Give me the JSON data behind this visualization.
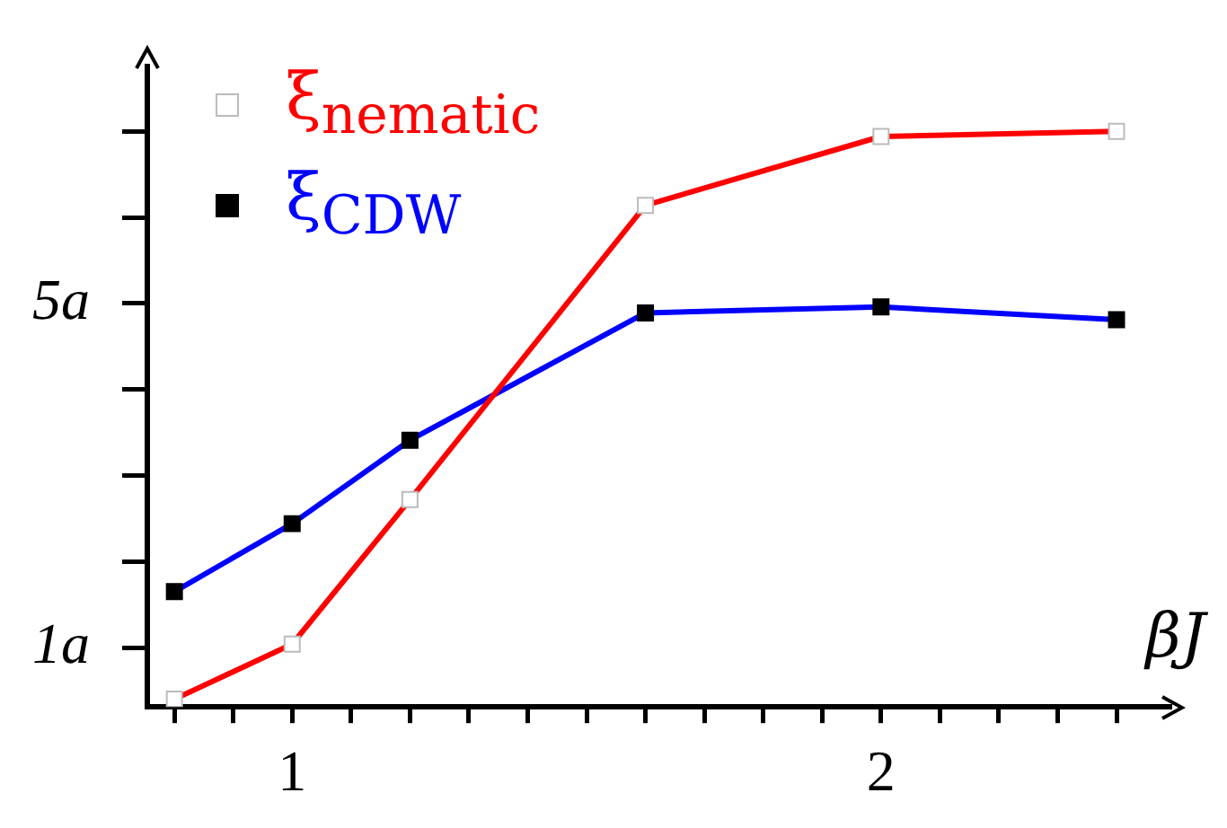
{
  "chart_data": {
    "type": "line",
    "xlabel": "βJ",
    "x": [
      0.8,
      1.0,
      1.2,
      1.6,
      2.0,
      2.4
    ],
    "series": [
      {
        "name": "ξ$_{nematic}$",
        "color": "#ff0000",
        "values": [
          0.4,
          1.04,
          2.72,
          6.14,
          6.94,
          7.0
        ]
      },
      {
        "name": "ξ$_{CDW}$",
        "color": "#0000ff",
        "values": [
          1.65,
          2.44,
          3.41,
          4.89,
          4.96,
          4.81
        ]
      }
    ],
    "xlim": [
      0.754,
      2.49
    ],
    "ylim": [
      0.31,
      7.75
    ],
    "xticks": [
      {
        "value": 0.8,
        "label": null
      },
      {
        "value": 0.9,
        "label": null
      },
      1,
      {
        "value": 1.1,
        "label": null
      },
      {
        "value": 1.2,
        "label": null
      },
      {
        "value": 1.3,
        "label": null
      },
      {
        "value": 1.4,
        "label": null
      },
      {
        "value": 1.5,
        "label": null
      },
      {
        "value": 1.6,
        "label": null
      },
      {
        "value": 1.7,
        "label": null
      },
      {
        "value": 1.8,
        "label": null
      },
      {
        "value": 1.9,
        "label": null
      },
      2,
      {
        "value": 2.1,
        "label": null
      },
      {
        "value": 2.2,
        "label": null
      },
      {
        "value": 2.3,
        "label": null
      },
      {
        "value": 2.4,
        "label": null
      }
    ],
    "yticks": [
      {
        "value": 1,
        "label": "1a"
      },
      {
        "value": 2,
        "label": null
      },
      {
        "value": 3,
        "label": null
      },
      {
        "value": 4,
        "label": null
      },
      {
        "value": 5,
        "label": "5a"
      },
      {
        "value": 6,
        "label": null
      },
      {
        "value": 7,
        "label": null
      }
    ],
    "grid": false,
    "legend": "top left",
    "marker": "square"
  }
}
